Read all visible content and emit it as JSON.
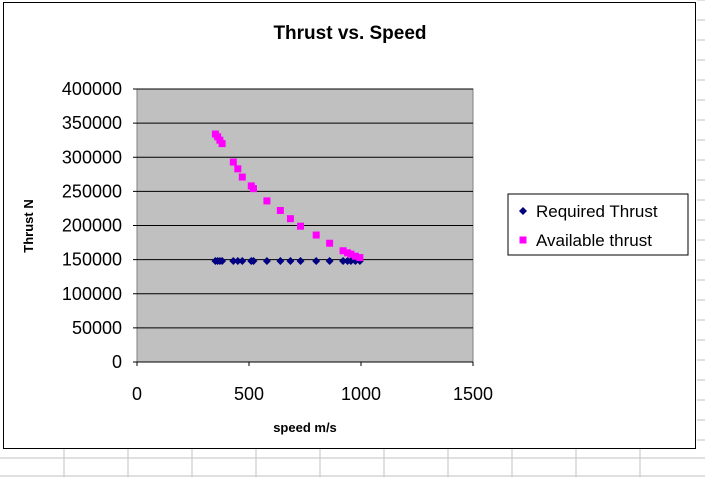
{
  "chart_data": {
    "type": "scatter",
    "title": "Thrust vs. Speed",
    "xlabel": "speed m/s",
    "ylabel": "Thrust N",
    "xlim": [
      0,
      1500
    ],
    "ylim": [
      0,
      400000
    ],
    "x_ticks": [
      "0",
      "500",
      "1000",
      "1500"
    ],
    "y_ticks": [
      "0",
      "50000",
      "100000",
      "150000",
      "200000",
      "250000",
      "300000",
      "350000",
      "400000"
    ],
    "grid": "horizontal",
    "legend": "right",
    "series": [
      {
        "name": "Required Thrust",
        "color": "#000080",
        "marker": "diamond",
        "x": [
          350,
          360,
          370,
          380,
          430,
          450,
          470,
          510,
          520,
          580,
          640,
          685,
          730,
          800,
          860,
          920,
          940,
          955,
          975,
          995
        ],
        "y": [
          148000,
          148000,
          148000,
          148000,
          148000,
          148000,
          148000,
          148000,
          148000,
          148000,
          148000,
          148000,
          148000,
          148000,
          148000,
          148000,
          148000,
          148000,
          148000,
          148000
        ]
      },
      {
        "name": "Available thrust",
        "color": "#ff00ff",
        "marker": "square",
        "x": [
          350,
          360,
          370,
          380,
          430,
          450,
          470,
          510,
          520,
          580,
          640,
          685,
          730,
          800,
          860,
          920,
          940,
          955,
          975,
          995
        ],
        "y": [
          334000,
          330000,
          325000,
          320000,
          293000,
          283000,
          271000,
          258000,
          254000,
          236000,
          222000,
          210000,
          199000,
          186000,
          174000,
          163000,
          160000,
          158000,
          155000,
          153000
        ]
      }
    ]
  }
}
